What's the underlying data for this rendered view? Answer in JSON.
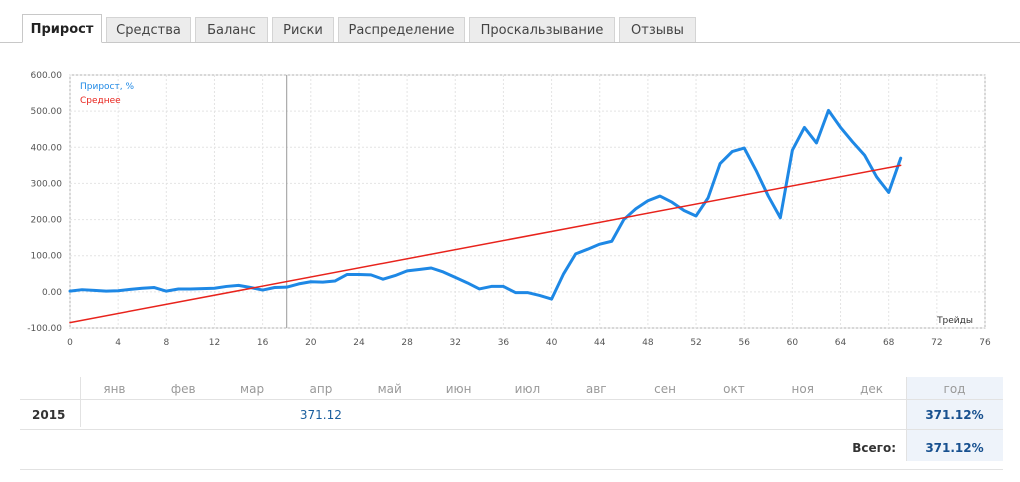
{
  "tabs": [
    {
      "label": "Прирост",
      "active": true
    },
    {
      "label": "Средства"
    },
    {
      "label": "Баланс"
    },
    {
      "label": "Риски"
    },
    {
      "label": "Распределение"
    },
    {
      "label": "Проскальзывание"
    },
    {
      "label": "Отзывы"
    }
  ],
  "chart_data": {
    "type": "line",
    "xlabel": "Трейды",
    "ylabel": "",
    "xlim": [
      0,
      76
    ],
    "ylim": [
      -100,
      600
    ],
    "x_ticks": [
      "0",
      "4",
      "8",
      "12",
      "16",
      "20",
      "24",
      "28",
      "32",
      "36",
      "40",
      "44",
      "48",
      "52",
      "56",
      "60",
      "64",
      "68",
      "72",
      "76"
    ],
    "y_ticks": [
      "600.00",
      "500.00",
      "400.00",
      "300.00",
      "200.00",
      "100.00",
      "0.00",
      "-100.00"
    ],
    "grid": true,
    "legend_position": "top-left",
    "marker_x": 18,
    "colors": {
      "growth": "#1e88e5",
      "average": "#e8231c"
    },
    "series": [
      {
        "name": "Прирост, %",
        "x": [
          0,
          1,
          2,
          3,
          4,
          5,
          6,
          7,
          8,
          9,
          10,
          11,
          12,
          13,
          14,
          15,
          16,
          17,
          18,
          19,
          20,
          21,
          22,
          23,
          24,
          25,
          26,
          27,
          28,
          29,
          30,
          31,
          32,
          33,
          34,
          35,
          36,
          37,
          38,
          39,
          40,
          41,
          42,
          43,
          44,
          45,
          46,
          47,
          48,
          49,
          50,
          51,
          52,
          53,
          54,
          55,
          56,
          57,
          58,
          59,
          60,
          61,
          62,
          63,
          64,
          65,
          66,
          67,
          68,
          69
        ],
        "y": [
          2,
          6,
          4,
          2,
          3,
          7,
          10,
          12,
          2,
          8,
          8,
          9,
          10,
          15,
          18,
          12,
          5,
          12,
          13,
          22,
          28,
          27,
          30,
          48,
          48,
          47,
          35,
          45,
          58,
          62,
          66,
          55,
          40,
          25,
          8,
          15,
          15,
          -2,
          -2,
          -10,
          -20,
          50,
          105,
          118,
          132,
          140,
          200,
          230,
          252,
          265,
          248,
          225,
          210,
          260,
          355,
          388,
          398,
          335,
          265,
          205,
          392,
          455,
          412,
          502,
          455,
          415,
          378,
          318,
          275,
          370
        ]
      },
      {
        "name": "Среднее",
        "x": [
          0,
          69
        ],
        "y": [
          -85,
          350
        ]
      }
    ]
  },
  "table": {
    "months": [
      "янв",
      "фев",
      "мар",
      "апр",
      "май",
      "июн",
      "июл",
      "авг",
      "сен",
      "окт",
      "ноя",
      "дек"
    ],
    "year_header": "год",
    "year": "2015",
    "month_values": {
      "апр": "371.12"
    },
    "year_value": "371.12%",
    "total_label": "Всего:",
    "total_value": "371.12%"
  }
}
